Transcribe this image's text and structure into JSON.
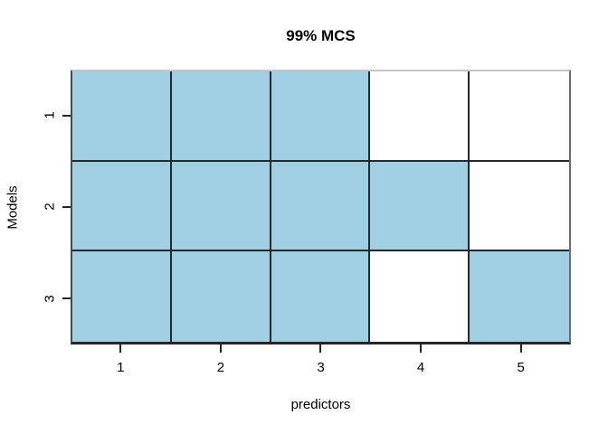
{
  "chart_data": {
    "type": "heatmap",
    "title": "99% MCS",
    "xlabel": "predictors",
    "ylabel": "Models",
    "x_ticks": [
      "1",
      "2",
      "3",
      "4",
      "5"
    ],
    "y_ticks": [
      "1",
      "2",
      "3"
    ],
    "matrix": [
      [
        1,
        1,
        1,
        0,
        0
      ],
      [
        1,
        1,
        1,
        1,
        0
      ],
      [
        1,
        1,
        1,
        0,
        1
      ]
    ],
    "x_range": [
      0.5,
      5.5
    ],
    "y_direction": "top-to-bottom",
    "legend": "none",
    "colors": {
      "filled_cell": "#9fcfe1",
      "empty_cell": "#ffffff",
      "grid_line": "#22292e",
      "axis": "#262626",
      "text": "#000000",
      "background": "#ffffff"
    }
  }
}
